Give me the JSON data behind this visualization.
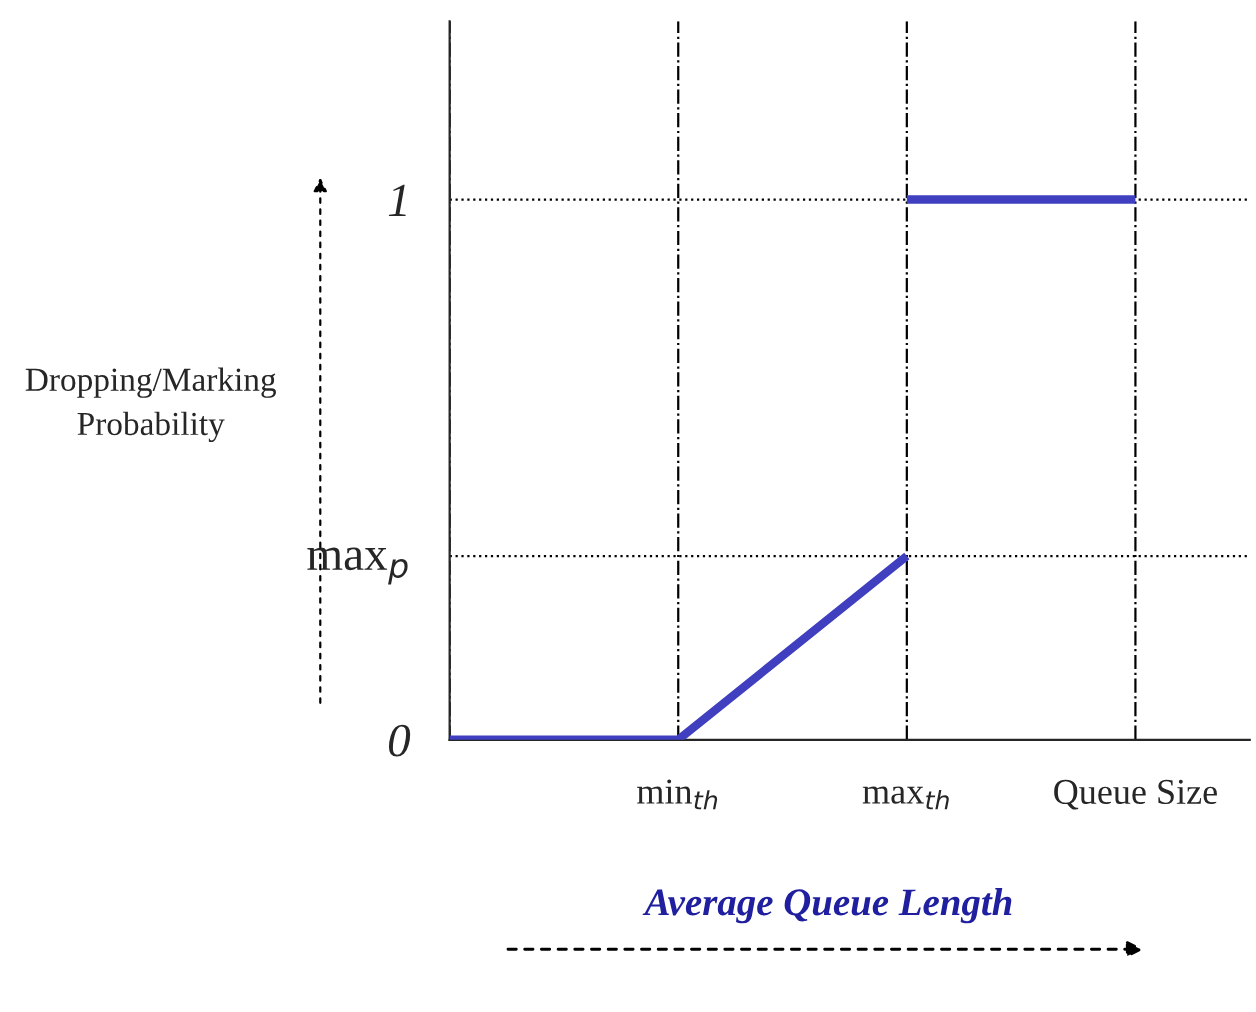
{
  "chart_data": {
    "type": "line",
    "xlabel": "Average Queue Length",
    "ylabel": "Dropping/Marking\nProbability",
    "categories": [
      null,
      "min$_{th}$",
      "max$_{th}$",
      "Queue Size"
    ],
    "series": [
      {
        "color": "#3f3fbf",
        "values": [
          0,
          0,
          0.34,
          null
        ]
      },
      {
        "color": "#3f3fbf",
        "values": [
          null,
          null,
          1,
          1
        ]
      }
    ],
    "ylim": [
      0,
      1.33
    ],
    "yticks": [
      0,
      {
        "value": 0.34,
        "label": "max$_{p}$"
      },
      1
    ],
    "ref_lines": [
      {
        "axis": "y",
        "value": 1,
        "line_style": "dotted",
        "color": "#000000"
      },
      {
        "axis": "y",
        "value": 0.34,
        "line_style": "dotted",
        "color": "#000000"
      }
    ],
    "grid": "x",
    "legend": false,
    "line_style": "solid",
    "marker": "none"
  }
}
